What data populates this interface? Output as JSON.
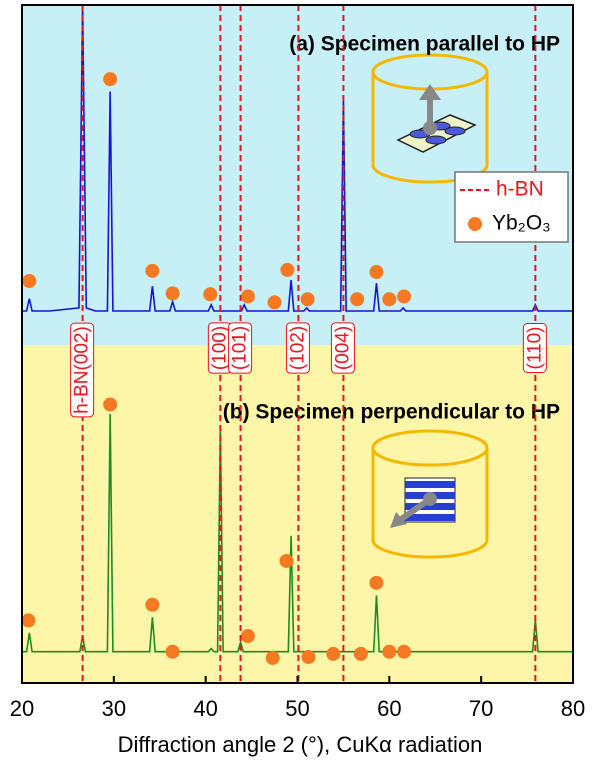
{
  "chart_data": {
    "type": "line",
    "xlabel": "Diffraction angle 2 (°), CuKα radiation",
    "xlim": [
      20,
      80
    ],
    "xticks": [
      20,
      30,
      40,
      50,
      60,
      70,
      80
    ],
    "legend": "upper right",
    "reference_lines": {
      "name": "h-BN",
      "color": "#e8141e",
      "x": [
        26.6,
        41.6,
        43.8,
        50.1,
        55.0,
        75.9
      ],
      "labels": [
        "h-BN(002)",
        "(100)",
        "(101)",
        "(102)",
        "(004)",
        "(110)"
      ]
    },
    "marker_name": "Yb₂O₃",
    "marker_color": "#f47920",
    "panels": [
      {
        "title": "(a) Specimen parallel to HP",
        "background": "#c6eff6",
        "ylim": [
          -10,
          100
        ],
        "series": [
          {
            "color": "#1414d2",
            "x": [
              20,
              20.5,
              20.8,
              21.1,
              23,
              26.2,
              26.6,
              27.0,
              28,
              29.3,
              29.6,
              29.9,
              32,
              33.9,
              34.2,
              34.5,
              36.1,
              36.4,
              36.7,
              40.3,
              40.6,
              40.9,
              43.9,
              44.2,
              44.5,
              49.0,
              49.3,
              49.6,
              50.7,
              51.0,
              51.3,
              54.7,
              55.0,
              55.3,
              58.3,
              58.6,
              58.9,
              61.2,
              61.5,
              61.8,
              65,
              70,
              75.6,
              75.9,
              76.2,
              80
            ],
            "values": [
              1,
              1,
              5,
              1,
              1,
              2,
              100,
              2,
              1,
              1,
              72,
              1,
              1,
              1,
              9,
              1,
              1,
              4,
              1,
              1,
              3,
              1,
              1,
              3,
              1,
              1,
              11,
              1,
              1,
              2,
              1,
              1,
              69,
              1,
              1,
              10,
              1,
              1,
              2,
              1,
              1,
              1,
              1,
              3,
              1,
              1
            ]
          }
        ],
        "markers": {
          "x": [
            20.8,
            29.6,
            34.2,
            36.4,
            40.5,
            44.6,
            47.5,
            48.9,
            51.1,
            56.5,
            58.6,
            60.0,
            61.6
          ],
          "values": [
            10.7,
            76,
            14,
            6.7,
            6.4,
            5.7,
            3.8,
            14.3,
            4.8,
            4.8,
            13.6,
            4.8,
            5.7
          ]
        }
      },
      {
        "title": "(b) Specimen perpendicular to HP",
        "background": "#fdf5a8",
        "ylim": [
          -8,
          100
        ],
        "series": [
          {
            "color": "#1e8c1e",
            "x": [
              20,
              20.5,
              20.8,
              21.1,
              23,
              26.3,
              26.6,
              26.9,
              29.3,
              29.6,
              29.9,
              32,
              33.9,
              34.2,
              34.5,
              36.1,
              36.4,
              36.7,
              40.3,
              40.6,
              40.9,
              41.3,
              41.6,
              41.9,
              43.5,
              43.8,
              44.1,
              47,
              49.0,
              49.3,
              49.6,
              53,
              58.3,
              58.6,
              58.9,
              61.2,
              61.5,
              61.8,
              70,
              75.6,
              75.9,
              76.2,
              80
            ],
            "values": [
              2,
              2,
              8,
              2,
              2,
              2,
              7,
              2,
              2,
              78,
              2,
              2,
              2,
              13,
              2,
              2,
              3,
              2,
              2,
              3,
              2,
              2,
              74,
              2,
              2,
              5,
              2,
              2,
              2,
              39,
              2,
              2,
              2,
              20,
              2,
              2,
              3,
              2,
              2,
              2,
              12,
              2,
              2
            ]
          }
        ],
        "markers": {
          "x": [
            20.7,
            29.6,
            34.2,
            36.4,
            44.6,
            47.3,
            48.8,
            51.2,
            53.9,
            56.9,
            58.6,
            60.0,
            61.6
          ],
          "values": [
            12,
            81,
            17,
            2,
            7,
            0,
            31,
            0.3,
            1.3,
            1.3,
            24,
            2,
            2
          ]
        }
      }
    ]
  }
}
